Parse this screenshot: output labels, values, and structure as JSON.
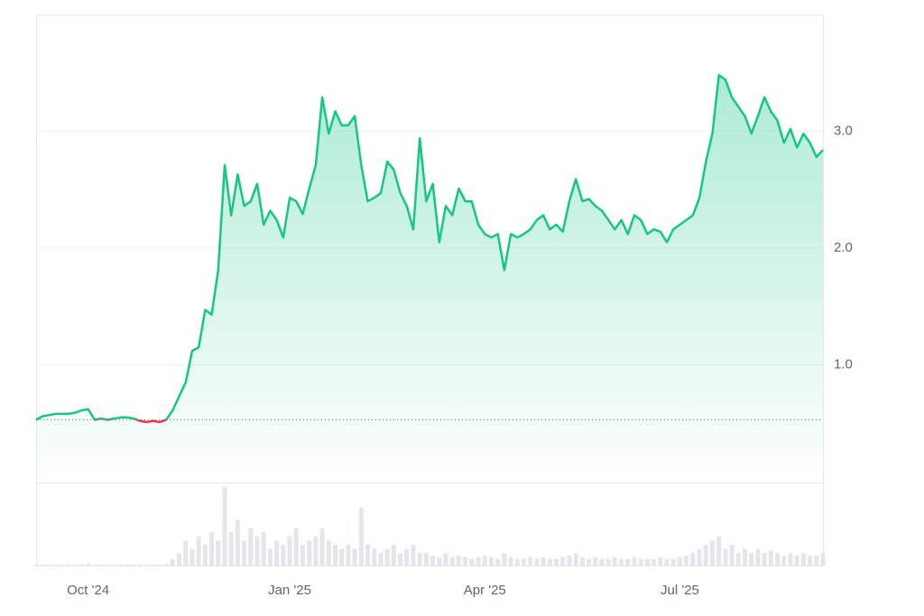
{
  "chart_data": {
    "type": "line",
    "categories": [
      null,
      null,
      null,
      null,
      null,
      null,
      null,
      null,
      "Oct '24",
      null,
      null,
      null,
      null,
      null,
      null,
      null,
      null,
      null,
      null,
      null,
      null,
      null,
      null,
      null,
      null,
      null,
      null,
      null,
      null,
      null,
      null,
      null,
      null,
      null,
      null,
      null,
      null,
      null,
      null,
      "Jan '25",
      null,
      null,
      null,
      null,
      null,
      null,
      null,
      null,
      null,
      null,
      null,
      null,
      null,
      null,
      null,
      null,
      null,
      null,
      null,
      null,
      null,
      null,
      null,
      null,
      null,
      null,
      null,
      null,
      null,
      "Apr '25",
      null,
      null,
      null,
      null,
      null,
      null,
      null,
      null,
      null,
      null,
      null,
      null,
      null,
      null,
      null,
      null,
      null,
      null,
      null,
      null,
      null,
      null,
      null,
      null,
      null,
      null,
      null,
      null,
      null,
      "Jul '25",
      null,
      null,
      null,
      null,
      null,
      null,
      null,
      null,
      null,
      null,
      null,
      null,
      null,
      null,
      null,
      null,
      null,
      null,
      null,
      null,
      null,
      null
    ],
    "values": [
      0.53,
      0.56,
      0.57,
      0.58,
      0.58,
      0.58,
      0.59,
      0.61,
      0.62,
      0.53,
      0.54,
      0.53,
      0.54,
      0.55,
      0.55,
      0.54,
      0.52,
      0.51,
      0.52,
      0.51,
      0.53,
      0.61,
      0.73,
      0.85,
      1.12,
      1.15,
      1.47,
      1.43,
      1.81,
      2.71,
      2.28,
      2.63,
      2.36,
      2.4,
      2.55,
      2.2,
      2.32,
      2.24,
      2.09,
      2.43,
      2.4,
      2.29,
      2.51,
      2.71,
      3.29,
      2.98,
      3.17,
      3.05,
      3.05,
      3.13,
      2.71,
      2.4,
      2.43,
      2.47,
      2.74,
      2.67,
      2.47,
      2.36,
      2.16,
      2.94,
      2.4,
      2.55,
      2.05,
      2.36,
      2.28,
      2.51,
      2.4,
      2.4,
      2.2,
      2.12,
      2.09,
      2.12,
      1.81,
      2.12,
      2.09,
      2.12,
      2.16,
      2.24,
      2.28,
      2.16,
      2.2,
      2.14,
      2.4,
      2.59,
      2.4,
      2.42,
      2.36,
      2.32,
      2.24,
      2.16,
      2.24,
      2.12,
      2.28,
      2.24,
      2.12,
      2.16,
      2.14,
      2.05,
      2.16,
      2.2,
      2.24,
      2.28,
      2.43,
      2.74,
      2.98,
      3.48,
      3.44,
      3.29,
      3.21,
      3.13,
      2.98,
      3.13,
      3.29,
      3.17,
      3.09,
      2.9,
      3.02,
      2.86,
      2.98,
      2.9,
      2.78,
      2.84
    ],
    "volume": [
      1,
      1,
      1,
      1,
      1,
      1,
      1,
      1,
      2,
      1,
      1,
      1,
      1,
      1,
      1,
      1,
      1,
      1,
      1,
      1,
      2,
      8,
      15,
      30,
      20,
      35,
      25,
      40,
      30,
      95,
      40,
      55,
      30,
      45,
      35,
      40,
      20,
      30,
      25,
      35,
      45,
      25,
      30,
      35,
      45,
      30,
      25,
      20,
      25,
      20,
      70,
      25,
      20,
      15,
      20,
      25,
      15,
      20,
      25,
      15,
      15,
      12,
      10,
      15,
      10,
      12,
      10,
      8,
      10,
      12,
      10,
      8,
      15,
      10,
      8,
      8,
      10,
      8,
      10,
      8,
      8,
      10,
      12,
      15,
      10,
      8,
      10,
      8,
      8,
      10,
      8,
      8,
      10,
      8,
      8,
      8,
      10,
      8,
      8,
      10,
      12,
      15,
      20,
      25,
      30,
      35,
      20,
      25,
      15,
      20,
      15,
      20,
      15,
      18,
      15,
      12,
      15,
      12,
      15,
      12,
      12,
      15
    ],
    "vlim": [
      0,
      100
    ],
    "baseline": 0.53,
    "up_color": "#16c784",
    "down_color": "#ea3943",
    "volume_color": "#e3e6ec",
    "ylim": [
      0,
      4.0
    ],
    "yticks": [
      {
        "value": 1,
        "label": "1.0"
      },
      {
        "value": 2,
        "label": "2.0"
      },
      {
        "value": 3,
        "label": "3.0"
      }
    ],
    "grid": true
  }
}
